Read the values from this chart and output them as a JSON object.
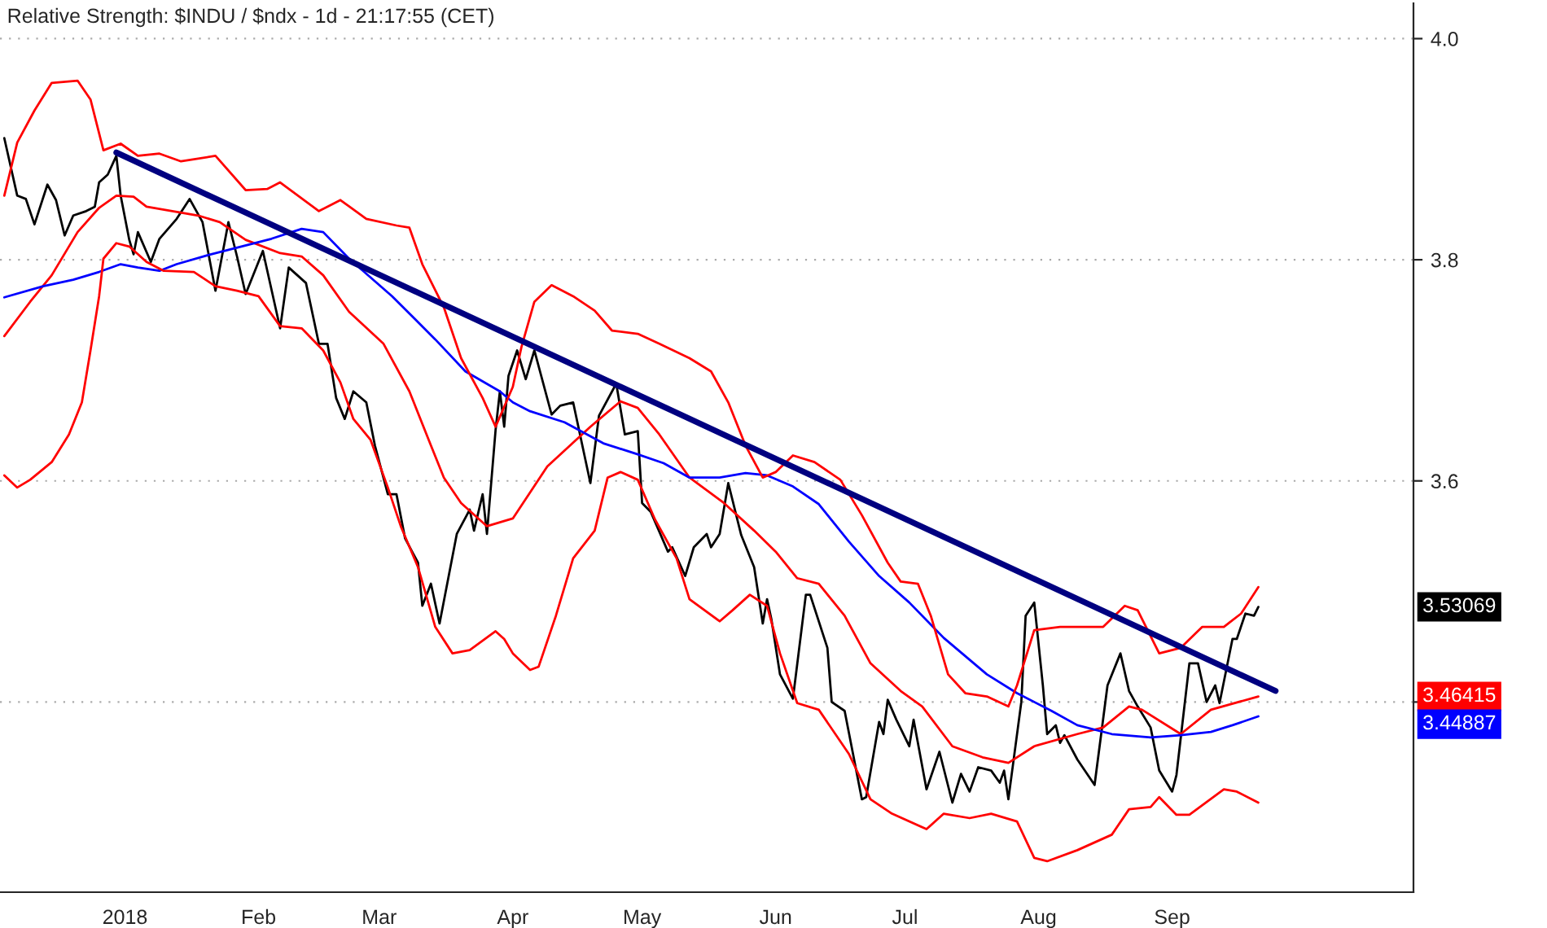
{
  "chart_data": {
    "type": "line",
    "title": "Relative Strength: $INDU / $ndx - 1d - 21:17:55 (CET)",
    "xlim": [
      "2017-12-03",
      "2018-10-27"
    ],
    "xticks": [
      {
        "value": "2018-01-01",
        "label": "2018"
      },
      {
        "value": "2018-02-01",
        "label": "Feb"
      },
      {
        "value": "2018-03-01",
        "label": "Mar"
      },
      {
        "value": "2018-04-01",
        "label": "Apr"
      },
      {
        "value": "2018-05-01",
        "label": "May"
      },
      {
        "value": "2018-06-01",
        "label": "Jun"
      },
      {
        "value": "2018-07-01",
        "label": "Jul"
      },
      {
        "value": "2018-08-01",
        "label": "Aug"
      },
      {
        "value": "2018-09-01",
        "label": "Sep"
      }
    ],
    "ylim": [
      3.228,
      4.032
    ],
    "yticks": [
      {
        "value": 3.4,
        "label": null
      },
      3.6,
      3.8,
      {
        "value": 4.0,
        "label": "4.0"
      }
    ],
    "grid": "y",
    "annotations": [
      "3.53069",
      "3.46415",
      "3.44887"
    ],
    "series": [
      {
        "color": "#000000",
        "x": [
          "2017-12-04",
          "2017-12-07",
          "2017-12-09",
          "2017-12-11",
          "2017-12-14",
          "2017-12-16",
          "2017-12-18",
          "2017-12-20",
          "2017-12-23",
          "2017-12-25",
          "2017-12-26",
          "2017-12-28",
          "2017-12-30",
          "2017-12-31",
          "2018-01-02",
          "2018-01-03",
          "2018-01-04",
          "2018-01-07",
          "2018-01-09",
          "2018-01-13",
          "2018-01-16",
          "2018-01-19",
          "2018-01-22",
          "2018-01-25",
          "2018-01-27",
          "2018-01-29",
          "2018-02-02",
          "2018-02-06",
          "2018-02-08",
          "2018-02-12",
          "2018-02-15",
          "2018-02-17",
          "2018-02-19",
          "2018-02-21",
          "2018-02-23",
          "2018-02-26",
          "2018-02-28",
          "2018-03-03",
          "2018-03-05",
          "2018-03-07",
          "2018-03-10",
          "2018-03-11",
          "2018-03-13",
          "2018-03-15",
          "2018-03-19",
          "2018-03-22",
          "2018-03-23",
          "2018-03-25",
          "2018-03-26",
          "2018-03-28",
          "2018-03-29",
          "2018-03-30",
          "2018-03-31",
          "2018-04-02",
          "2018-04-04",
          "2018-04-06",
          "2018-04-10",
          "2018-04-12",
          "2018-04-15",
          "2018-04-19",
          "2018-04-21",
          "2018-04-25",
          "2018-04-27",
          "2018-04-30",
          "2018-05-01",
          "2018-05-03",
          "2018-05-07",
          "2018-05-08",
          "2018-05-11",
          "2018-05-13",
          "2018-05-16",
          "2018-05-17",
          "2018-05-19",
          "2018-05-21",
          "2018-05-24",
          "2018-05-27",
          "2018-05-29",
          "2018-05-30",
          "2018-05-31",
          "2018-06-02",
          "2018-06-05",
          "2018-06-08",
          "2018-06-09",
          "2018-06-13",
          "2018-06-14",
          "2018-06-17",
          "2018-06-21",
          "2018-06-22",
          "2018-06-25",
          "2018-06-26",
          "2018-06-27",
          "2018-06-29",
          "2018-07-02",
          "2018-07-03",
          "2018-07-06",
          "2018-07-09",
          "2018-07-12",
          "2018-07-14",
          "2018-07-16",
          "2018-07-18",
          "2018-07-21",
          "2018-07-23",
          "2018-07-24",
          "2018-07-25",
          "2018-07-28",
          "2018-07-29",
          "2018-07-31",
          "2018-08-02",
          "2018-08-03",
          "2018-08-05",
          "2018-08-06",
          "2018-08-07",
          "2018-08-10",
          "2018-08-14",
          "2018-08-17",
          "2018-08-20",
          "2018-08-22",
          "2018-08-24",
          "2018-08-27",
          "2018-08-29",
          "2018-09-01",
          "2018-09-02",
          "2018-09-05",
          "2018-09-07",
          "2018-09-09",
          "2018-09-11",
          "2018-09-12",
          "2018-09-15",
          "2018-09-16",
          "2018-09-18",
          "2018-09-20",
          "2018-09-21"
        ],
        "values": [
          3.91,
          3.858,
          3.855,
          3.832,
          3.868,
          3.854,
          3.822,
          3.84,
          3.844,
          3.848,
          3.87,
          3.877,
          3.894,
          3.858,
          3.818,
          3.805,
          3.825,
          3.798,
          3.819,
          3.837,
          3.855,
          3.834,
          3.772,
          3.834,
          3.803,
          3.769,
          3.808,
          3.738,
          3.793,
          3.779,
          3.724,
          3.724,
          3.675,
          3.656,
          3.681,
          3.671,
          3.632,
          3.588,
          3.588,
          3.548,
          3.526,
          3.487,
          3.507,
          3.471,
          3.552,
          3.574,
          3.555,
          3.588,
          3.552,
          3.646,
          3.681,
          3.649,
          3.695,
          3.718,
          3.692,
          3.718,
          3.66,
          3.668,
          3.671,
          3.598,
          3.659,
          3.688,
          3.642,
          3.645,
          3.58,
          3.572,
          3.536,
          3.54,
          3.514,
          3.54,
          3.552,
          3.54,
          3.552,
          3.598,
          3.551,
          3.522,
          3.471,
          3.493,
          3.475,
          3.425,
          3.403,
          3.497,
          3.497,
          3.449,
          3.4,
          3.392,
          3.312,
          3.314,
          3.382,
          3.371,
          3.402,
          3.384,
          3.36,
          3.384,
          3.321,
          3.355,
          3.309,
          3.335,
          3.319,
          3.341,
          3.338,
          3.327,
          3.338,
          3.312,
          3.4,
          3.478,
          3.49,
          3.415,
          3.371,
          3.379,
          3.363,
          3.37,
          3.348,
          3.325,
          3.415,
          3.444,
          3.41,
          3.396,
          3.377,
          3.338,
          3.319,
          3.334,
          3.435,
          3.435,
          3.4,
          3.415,
          3.399,
          3.457,
          3.457,
          3.48,
          3.478,
          3.486
        ]
      },
      {
        "color": "#ff0000",
        "x": [
          "2017-12-04",
          "2017-12-10",
          "2017-12-15",
          "2017-12-21",
          "2017-12-26",
          "2017-12-30",
          "2018-01-03",
          "2018-01-06",
          "2018-01-12",
          "2018-01-18",
          "2018-01-23",
          "2018-01-29",
          "2018-02-06",
          "2018-02-11",
          "2018-02-16",
          "2018-02-22",
          "2018-03-02",
          "2018-03-08",
          "2018-03-13",
          "2018-03-16",
          "2018-03-20",
          "2018-03-26",
          "2018-04-01",
          "2018-04-09",
          "2018-04-19",
          "2018-04-26",
          "2018-04-30",
          "2018-05-05",
          "2018-05-12",
          "2018-05-20",
          "2018-05-27",
          "2018-06-01",
          "2018-06-06",
          "2018-06-11",
          "2018-06-17",
          "2018-06-23",
          "2018-06-30",
          "2018-07-05",
          "2018-07-12",
          "2018-07-19",
          "2018-07-25",
          "2018-07-31",
          "2018-08-10",
          "2018-08-16",
          "2018-08-22",
          "2018-08-25",
          "2018-09-03",
          "2018-09-10",
          "2018-09-21"
        ],
        "values": [
          3.731,
          3.762,
          3.786,
          3.825,
          3.847,
          3.858,
          3.857,
          3.848,
          3.844,
          3.84,
          3.834,
          3.818,
          3.806,
          3.803,
          3.786,
          3.753,
          3.724,
          3.681,
          3.632,
          3.603,
          3.58,
          3.559,
          3.566,
          3.613,
          3.649,
          3.672,
          3.666,
          3.642,
          3.603,
          3.58,
          3.555,
          3.536,
          3.512,
          3.507,
          3.478,
          3.435,
          3.41,
          3.396,
          3.36,
          3.35,
          3.345,
          3.36,
          3.371,
          3.377,
          3.396,
          3.393,
          3.371,
          3.393,
          3.405
        ]
      },
      {
        "color": "#0000ff",
        "x": [
          "2017-12-04",
          "2017-12-13",
          "2017-12-20",
          "2017-12-26",
          "2017-12-31",
          "2018-01-04",
          "2018-01-09",
          "2018-01-13",
          "2018-01-21",
          "2018-01-28",
          "2018-02-04",
          "2018-02-11",
          "2018-02-16",
          "2018-02-22",
          "2018-03-04",
          "2018-03-14",
          "2018-03-21",
          "2018-03-29",
          "2018-04-01",
          "2018-04-05",
          "2018-04-13",
          "2018-04-22",
          "2018-04-30",
          "2018-05-06",
          "2018-05-12",
          "2018-05-19",
          "2018-05-25",
          "2018-05-30",
          "2018-06-05",
          "2018-06-11",
          "2018-06-18",
          "2018-06-25",
          "2018-07-02",
          "2018-07-10",
          "2018-07-20",
          "2018-07-27",
          "2018-08-04",
          "2018-08-10",
          "2018-08-18",
          "2018-08-27",
          "2018-09-03",
          "2018-09-10",
          "2018-09-15",
          "2018-09-21"
        ],
        "values": [
          3.766,
          3.776,
          3.782,
          3.789,
          3.796,
          3.793,
          3.79,
          3.796,
          3.805,
          3.812,
          3.819,
          3.828,
          3.825,
          3.801,
          3.767,
          3.728,
          3.699,
          3.681,
          3.671,
          3.663,
          3.653,
          3.634,
          3.624,
          3.616,
          3.603,
          3.603,
          3.607,
          3.605,
          3.595,
          3.579,
          3.545,
          3.514,
          3.49,
          3.458,
          3.425,
          3.408,
          3.392,
          3.379,
          3.371,
          3.368,
          3.37,
          3.373,
          3.379,
          3.387
        ]
      },
      {
        "color": "#ff0000",
        "x": [
          "2017-12-04",
          "2017-12-07",
          "2017-12-11",
          "2017-12-15",
          "2017-12-21",
          "2017-12-24",
          "2017-12-27",
          "2017-12-31",
          "2018-01-04",
          "2018-01-09",
          "2018-01-14",
          "2018-01-22",
          "2018-01-29",
          "2018-02-03",
          "2018-02-06",
          "2018-02-15",
          "2018-02-20",
          "2018-02-26",
          "2018-03-05",
          "2018-03-08",
          "2018-03-11",
          "2018-03-16",
          "2018-03-20",
          "2018-03-25",
          "2018-03-28",
          "2018-04-01",
          "2018-04-03",
          "2018-04-06",
          "2018-04-10",
          "2018-04-15",
          "2018-04-20",
          "2018-04-24",
          "2018-04-30",
          "2018-05-05",
          "2018-05-12",
          "2018-05-17",
          "2018-05-21",
          "2018-05-25",
          "2018-05-29",
          "2018-06-01",
          "2018-06-05",
          "2018-06-10",
          "2018-06-16",
          "2018-06-21",
          "2018-06-27",
          "2018-06-30",
          "2018-07-04",
          "2018-07-07",
          "2018-07-11",
          "2018-07-15",
          "2018-07-20",
          "2018-07-25",
          "2018-07-27",
          "2018-07-31",
          "2018-08-06",
          "2018-08-16",
          "2018-08-21",
          "2018-08-24",
          "2018-08-29",
          "2018-09-03",
          "2018-09-08",
          "2018-09-13",
          "2018-09-17",
          "2018-09-21"
        ],
        "values": [
          3.858,
          3.906,
          3.935,
          3.96,
          3.962,
          3.945,
          3.899,
          3.905,
          3.894,
          3.896,
          3.889,
          3.894,
          3.863,
          3.864,
          3.87,
          3.844,
          3.854,
          3.837,
          3.831,
          3.829,
          3.796,
          3.757,
          3.711,
          3.675,
          3.649,
          3.685,
          3.721,
          3.762,
          3.777,
          3.767,
          3.754,
          3.736,
          3.733,
          3.724,
          3.711,
          3.699,
          3.671,
          3.632,
          3.603,
          3.608,
          3.623,
          3.617,
          3.601,
          3.569,
          3.526,
          3.509,
          3.507,
          3.478,
          3.425,
          3.408,
          3.405,
          3.396,
          3.415,
          3.465,
          3.468,
          3.468,
          3.487,
          3.483,
          3.444,
          3.449,
          3.468,
          3.468,
          3.48,
          3.504
        ]
      },
      {
        "color": "#ff0000",
        "x": [
          "2017-12-04",
          "2017-12-07",
          "2017-12-10",
          "2017-12-15",
          "2017-12-19",
          "2017-12-22",
          "2017-12-24",
          "2017-12-26",
          "2017-12-27",
          "2017-12-30",
          "2018-01-02",
          "2018-01-06",
          "2018-01-10",
          "2018-01-17",
          "2018-01-22",
          "2018-01-27",
          "2018-02-01",
          "2018-02-06",
          "2018-02-11",
          "2018-02-16",
          "2018-02-20",
          "2018-02-23",
          "2018-02-27",
          "2018-03-03",
          "2018-03-06",
          "2018-03-10",
          "2018-03-14",
          "2018-03-18",
          "2018-03-22",
          "2018-03-28",
          "2018-03-30",
          "2018-04-01",
          "2018-04-05",
          "2018-04-07",
          "2018-04-11",
          "2018-04-15",
          "2018-04-20",
          "2018-04-23",
          "2018-04-26",
          "2018-04-30",
          "2018-05-04",
          "2018-05-09",
          "2018-05-12",
          "2018-05-19",
          "2018-05-22",
          "2018-05-26",
          "2018-05-30",
          "2018-06-02",
          "2018-06-06",
          "2018-06-11",
          "2018-06-18",
          "2018-06-23",
          "2018-06-28",
          "2018-07-06",
          "2018-07-10",
          "2018-07-16",
          "2018-07-21",
          "2018-07-27",
          "2018-07-31",
          "2018-08-03",
          "2018-08-10",
          "2018-08-18",
          "2018-08-22",
          "2018-08-27",
          "2018-08-29",
          "2018-09-02",
          "2018-09-05",
          "2018-09-13",
          "2018-09-16",
          "2018-09-21"
        ],
        "values": [
          3.605,
          3.594,
          3.601,
          3.617,
          3.642,
          3.671,
          3.718,
          3.767,
          3.801,
          3.815,
          3.812,
          3.798,
          3.79,
          3.789,
          3.776,
          3.772,
          3.767,
          3.74,
          3.738,
          3.718,
          3.689,
          3.656,
          3.637,
          3.594,
          3.559,
          3.522,
          3.468,
          3.444,
          3.447,
          3.464,
          3.457,
          3.444,
          3.429,
          3.432,
          3.478,
          3.53,
          3.555,
          3.603,
          3.608,
          3.601,
          3.565,
          3.53,
          3.493,
          3.473,
          3.483,
          3.497,
          3.487,
          3.444,
          3.399,
          3.393,
          3.353,
          3.312,
          3.299,
          3.285,
          3.299,
          3.295,
          3.299,
          3.292,
          3.259,
          3.256,
          3.266,
          3.28,
          3.303,
          3.305,
          3.314,
          3.298,
          3.298,
          3.321,
          3.319,
          3.309
        ]
      },
      {
        "color": "#000080",
        "x": [
          "2017-12-30",
          "2018-09-25"
        ],
        "values": [
          3.897,
          3.41
        ]
      }
    ]
  }
}
